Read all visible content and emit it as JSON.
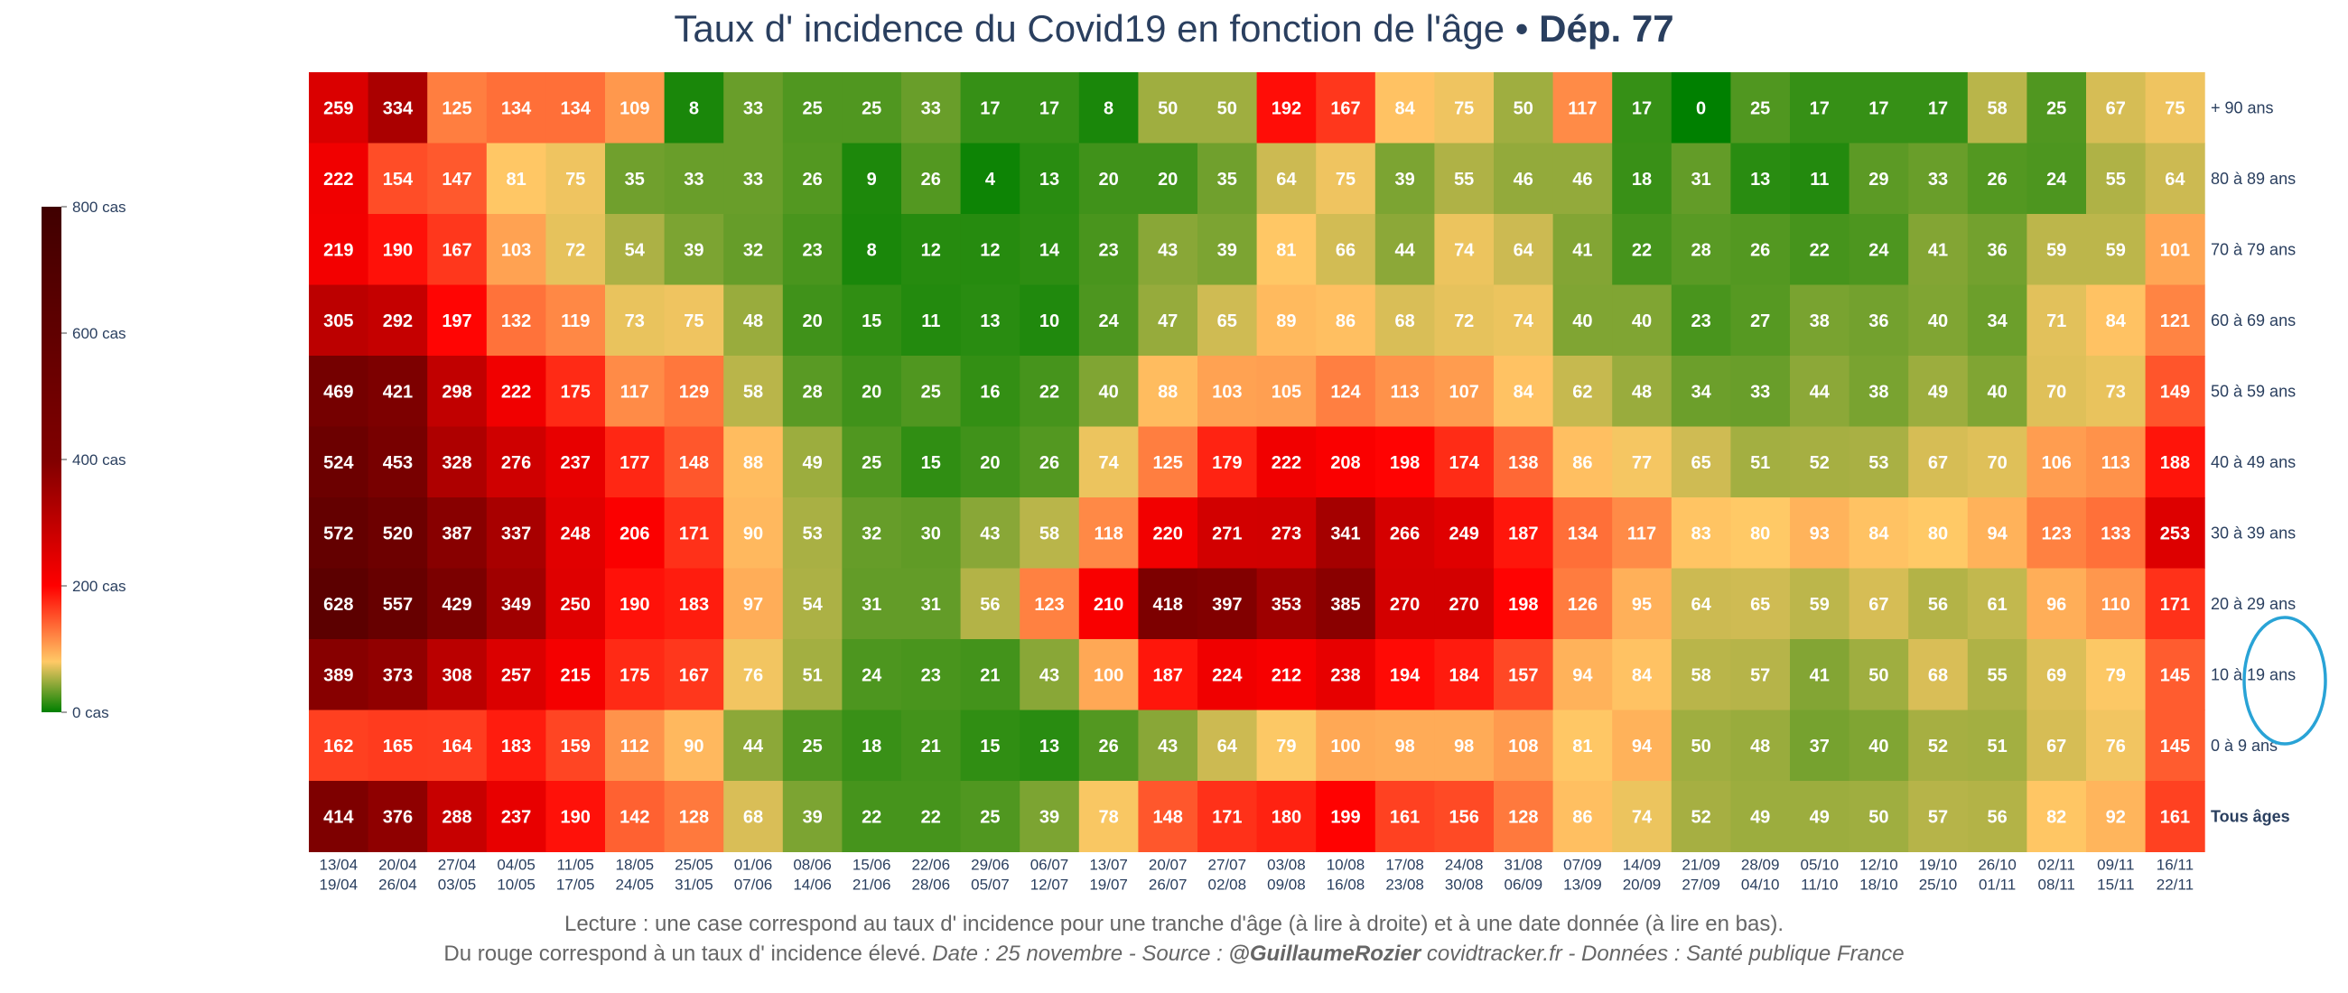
{
  "title": {
    "main": "Taux d' incidence du Covid19 en fonction de l'âge",
    "separator": " • ",
    "dept": "Dép. 77"
  },
  "footer": {
    "line1": "Lecture : une case correspond au taux d' incidence pour une tranche d'âge (à lire à droite) et à une date donnée (à lire en bas).",
    "line2_prefix": "Du rouge correspond à un taux d' incidence élevé.  ",
    "line2_date": "Date : 25 novembre - Source : ",
    "line2_author": "@GuillaumeRozier",
    "line2_rest": " covidtracker.fr - Données : Santé publique France"
  },
  "colors": {
    "scale": [
      "#008000",
      "#ffc966",
      "#ff0000",
      "#800000",
      "#400000"
    ],
    "text": "#2a3f5f",
    "annotation_circle": "#29a3d6"
  },
  "chart_data": {
    "type": "heatmap",
    "colorbar": {
      "ticks": [
        "0 cas",
        "200 cas",
        "400 cas",
        "600 cas",
        "800 cas"
      ],
      "range": [
        0,
        800
      ]
    },
    "x": [
      [
        "13/04",
        "19/04"
      ],
      [
        "20/04",
        "26/04"
      ],
      [
        "27/04",
        "03/05"
      ],
      [
        "04/05",
        "10/05"
      ],
      [
        "11/05",
        "17/05"
      ],
      [
        "18/05",
        "24/05"
      ],
      [
        "25/05",
        "31/05"
      ],
      [
        "01/06",
        "07/06"
      ],
      [
        "08/06",
        "14/06"
      ],
      [
        "15/06",
        "21/06"
      ],
      [
        "22/06",
        "28/06"
      ],
      [
        "29/06",
        "05/07"
      ],
      [
        "06/07",
        "12/07"
      ],
      [
        "13/07",
        "19/07"
      ],
      [
        "20/07",
        "26/07"
      ],
      [
        "27/07",
        "02/08"
      ],
      [
        "03/08",
        "09/08"
      ],
      [
        "10/08",
        "16/08"
      ],
      [
        "17/08",
        "23/08"
      ],
      [
        "24/08",
        "30/08"
      ],
      [
        "31/08",
        "06/09"
      ],
      [
        "07/09",
        "13/09"
      ],
      [
        "14/09",
        "20/09"
      ],
      [
        "21/09",
        "27/09"
      ],
      [
        "28/09",
        "04/10"
      ],
      [
        "05/10",
        "11/10"
      ],
      [
        "12/10",
        "18/10"
      ],
      [
        "19/10",
        "25/10"
      ],
      [
        "26/10",
        "01/11"
      ],
      [
        "02/11",
        "08/11"
      ],
      [
        "09/11",
        "15/11"
      ],
      [
        "16/11",
        "22/11"
      ]
    ],
    "y": [
      "+ 90 ans",
      "80 à 89 ans",
      "70 à 79 ans",
      "60 à 69 ans",
      "50 à 59 ans",
      "40 à 49 ans",
      "30 à 39 ans",
      "20 à 29 ans",
      "10 à 19 ans",
      "0 à 9 ans",
      "Tous âges"
    ],
    "z": [
      [
        259,
        334,
        125,
        134,
        134,
        109,
        8,
        33,
        25,
        25,
        33,
        17,
        17,
        8,
        50,
        50,
        192,
        167,
        84,
        75,
        50,
        117,
        17,
        0,
        25,
        17,
        17,
        17,
        58,
        25,
        67,
        75
      ],
      [
        222,
        154,
        147,
        81,
        75,
        35,
        33,
        33,
        26,
        9,
        26,
        4,
        13,
        20,
        20,
        35,
        64,
        75,
        39,
        55,
        46,
        46,
        18,
        31,
        13,
        11,
        29,
        33,
        26,
        24,
        55,
        64
      ],
      [
        219,
        190,
        167,
        103,
        72,
        54,
        39,
        32,
        23,
        8,
        12,
        12,
        14,
        23,
        43,
        39,
        81,
        66,
        44,
        74,
        64,
        41,
        22,
        28,
        26,
        22,
        24,
        41,
        36,
        59,
        59,
        101
      ],
      [
        305,
        292,
        197,
        132,
        119,
        73,
        75,
        48,
        20,
        15,
        11,
        13,
        10,
        24,
        47,
        65,
        89,
        86,
        68,
        72,
        74,
        40,
        40,
        23,
        27,
        38,
        36,
        40,
        34,
        71,
        84,
        121
      ],
      [
        469,
        421,
        298,
        222,
        175,
        117,
        129,
        58,
        28,
        20,
        25,
        16,
        22,
        40,
        88,
        103,
        105,
        124,
        113,
        107,
        84,
        62,
        48,
        34,
        33,
        44,
        38,
        49,
        40,
        70,
        73,
        149
      ],
      [
        524,
        453,
        328,
        276,
        237,
        177,
        148,
        88,
        49,
        25,
        15,
        20,
        26,
        74,
        125,
        179,
        222,
        208,
        198,
        174,
        138,
        86,
        77,
        65,
        51,
        52,
        53,
        67,
        70,
        106,
        113,
        188
      ],
      [
        572,
        520,
        387,
        337,
        248,
        206,
        171,
        90,
        53,
        32,
        30,
        43,
        58,
        118,
        220,
        271,
        273,
        341,
        266,
        249,
        187,
        134,
        117,
        83,
        80,
        93,
        84,
        80,
        94,
        123,
        133,
        253
      ],
      [
        628,
        557,
        429,
        349,
        250,
        190,
        183,
        97,
        54,
        31,
        31,
        56,
        123,
        210,
        418,
        397,
        353,
        385,
        270,
        270,
        198,
        126,
        95,
        64,
        65,
        59,
        67,
        56,
        61,
        96,
        110,
        171
      ],
      [
        389,
        373,
        308,
        257,
        215,
        175,
        167,
        76,
        51,
        24,
        23,
        21,
        43,
        100,
        187,
        224,
        212,
        238,
        194,
        184,
        157,
        94,
        84,
        58,
        57,
        41,
        50,
        68,
        55,
        69,
        79,
        145
      ],
      [
        162,
        165,
        164,
        183,
        159,
        112,
        90,
        44,
        25,
        18,
        21,
        15,
        13,
        26,
        43,
        64,
        79,
        100,
        98,
        98,
        108,
        81,
        94,
        50,
        48,
        37,
        40,
        52,
        51,
        67,
        76,
        145
      ],
      [
        414,
        376,
        288,
        237,
        190,
        142,
        128,
        68,
        39,
        22,
        22,
        25,
        39,
        78,
        148,
        171,
        180,
        199,
        161,
        156,
        128,
        86,
        74,
        52,
        49,
        49,
        50,
        57,
        56,
        82,
        92,
        161
      ]
    ]
  }
}
